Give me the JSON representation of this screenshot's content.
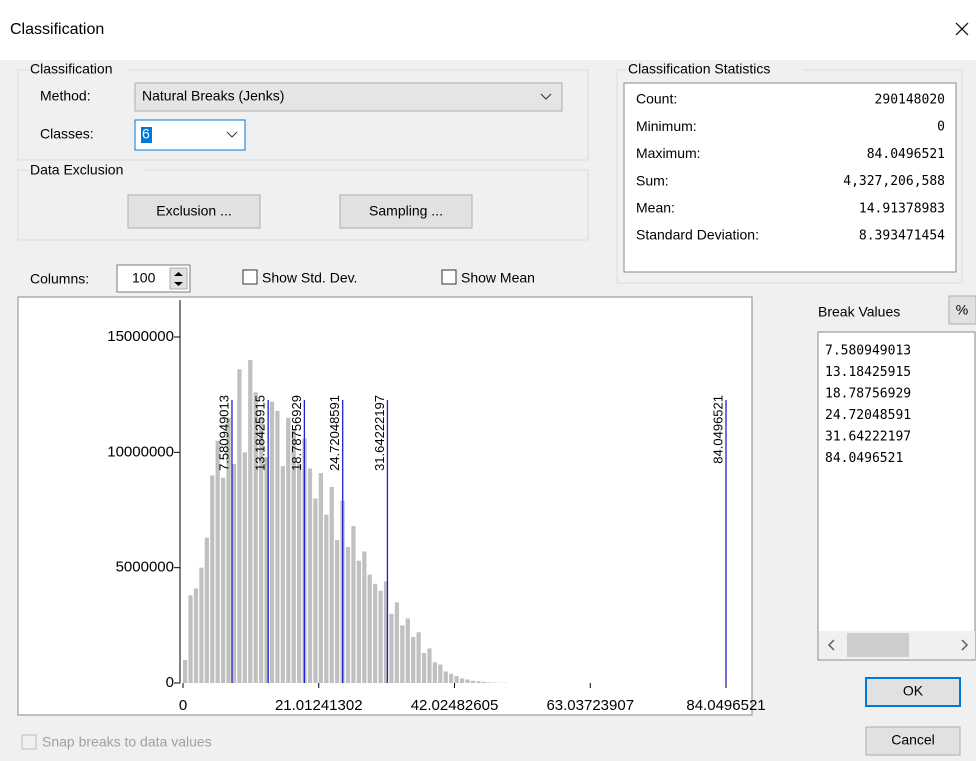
{
  "dialog": {
    "title": "Classification"
  },
  "classification": {
    "legend": "Classification",
    "method_label": "Method:",
    "method": "Natural Breaks (Jenks)",
    "classes_label": "Classes:",
    "classes": "6"
  },
  "data_exclusion": {
    "legend": "Data Exclusion",
    "exclusion_button": "Exclusion ...",
    "sampling_button": "Sampling ..."
  },
  "statistics": {
    "legend": "Classification Statistics",
    "rows": [
      [
        "Count:",
        "290148020"
      ],
      [
        "Minimum:",
        "0"
      ],
      [
        "Maximum:",
        "84.0496521"
      ],
      [
        "Sum:",
        "4,327,206,588"
      ],
      [
        "Mean:",
        "14.91378983"
      ],
      [
        "Standard Deviation:",
        "8.393471454"
      ]
    ]
  },
  "columns_label": "Columns:",
  "columns": "100",
  "show_std_dev": "Show Std. Dev.",
  "show_mean": "Show Mean",
  "break_values_label": "Break Values",
  "percent_button": "%",
  "ok": "OK",
  "cancel": "Cancel",
  "snap": "Snap breaks to data values",
  "chart_data": {
    "type": "histogram",
    "bins": [
      0,
      0.840496521,
      1.680993042,
      2.521489563,
      3.361986084,
      4.202482605,
      5.042979126,
      5.883475647,
      6.723972168,
      7.564468689,
      8.40496521,
      9.245461731,
      10.085958252,
      10.926454773,
      11.766951294,
      12.607447815,
      13.447944336,
      14.288440857,
      15.128937378,
      15.969433899,
      16.80993042,
      17.650426941,
      18.490923462,
      19.331419983,
      20.171916504,
      21.012413025,
      21.852909546,
      22.693406067,
      23.533902588,
      24.374399109,
      25.21489563,
      26.055392151,
      26.895888672,
      27.736385193,
      28.576881714,
      29.417378235,
      30.257874756,
      31.098371277,
      31.938867798,
      32.779364319,
      33.61986084,
      34.460357361,
      35.300853882,
      36.141350403,
      36.981846924,
      37.822343445,
      38.662839966,
      39.503336487,
      40.343833008,
      41.184329529,
      42.02482605,
      42.865322571,
      43.705819092,
      44.546315613,
      45.386812134,
      46.227308655,
      47.067805176,
      47.908301697,
      48.748798218,
      49.589294739,
      50.42979126
    ],
    "values": [
      1000000,
      3800000,
      4100000,
      5000000,
      6300000,
      9000000,
      10500000,
      8900000,
      11500000,
      9500000,
      13600000,
      10000000,
      14000000,
      12600000,
      11500000,
      9800000,
      12200000,
      11800000,
      9400000,
      11500000,
      11000000,
      9500000,
      10600000,
      9300000,
      8000000,
      9100000,
      7300000,
      8500000,
      6200000,
      7900000,
      5900000,
      6800000,
      5300000,
      5700000,
      4700000,
      4300000,
      4000000,
      4400000,
      3000000,
      3500000,
      2500000,
      2800000,
      2000000,
      2200000,
      1300000,
      1500000,
      900000,
      800000,
      500000,
      400000,
      300000,
      200000,
      150000,
      100000,
      80000,
      50000,
      30000,
      20000,
      10000,
      10000
    ],
    "color": "#c0c0c0",
    "xlim": [
      0,
      84.0496521
    ],
    "ylim": [
      0,
      16600000
    ],
    "xticks": [
      0,
      21.01241302,
      42.02482605,
      63.03723907,
      84.0496521
    ],
    "yticks": [
      0,
      5000000,
      10000000,
      15000000
    ],
    "breaks": [
      7.580949013,
      13.18425915,
      18.78756929,
      24.72048591,
      31.64222197,
      84.0496521
    ],
    "break_color": "#2020d0"
  }
}
